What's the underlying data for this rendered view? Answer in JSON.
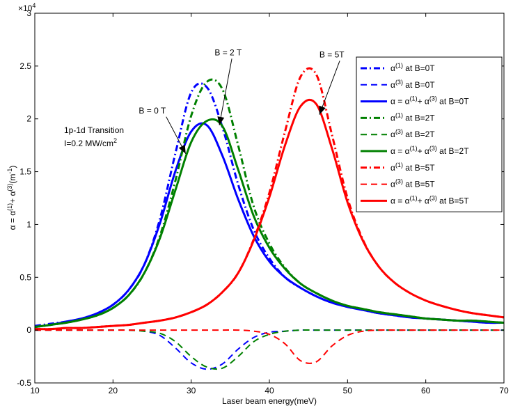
{
  "chart_data": {
    "type": "line",
    "title": "",
    "xlabel": "Laser beam energy(meV)",
    "ylabel_parts": [
      "α = α",
      "(1)",
      "+ α",
      "(3)",
      "(m",
      "-1",
      ")"
    ],
    "y_multiplier": {
      "base": "×10",
      "exp": "4"
    },
    "xlim": [
      10,
      70
    ],
    "ylim": [
      -0.5,
      3
    ],
    "x_ticks": [
      10,
      20,
      30,
      40,
      50,
      60,
      70
    ],
    "x_tick_labels": [
      "10",
      "20",
      "30",
      "40",
      "50",
      "60",
      "70"
    ],
    "y_ticks": [
      -0.5,
      0,
      0.5,
      1,
      1.5,
      2,
      2.5,
      3
    ],
    "y_tick_labels": [
      "-0.5",
      "0",
      "0.5",
      "1",
      "1.5",
      "2",
      "2.5",
      "3"
    ],
    "grid": false,
    "legend_position": "top-right",
    "x": [
      10,
      12,
      14,
      16,
      18,
      20,
      22,
      24,
      26,
      28,
      30,
      32,
      34,
      36,
      38,
      40,
      42,
      44,
      46,
      48,
      50,
      52,
      54,
      56,
      58,
      60,
      62,
      64,
      66,
      68,
      70
    ],
    "series": [
      {
        "legend": [
          "α",
          "(1)",
          " at B=0T"
        ],
        "color": "#0000ff",
        "style": "dashdot",
        "width": 3,
        "values": [
          0.04,
          0.06,
          0.08,
          0.11,
          0.16,
          0.24,
          0.38,
          0.62,
          1.05,
          1.68,
          2.25,
          2.3,
          1.92,
          1.38,
          0.95,
          0.68,
          0.5,
          0.4,
          0.32,
          0.26,
          0.22,
          0.19,
          0.16,
          0.14,
          0.12,
          0.11,
          0.1,
          0.09,
          0.08,
          0.07,
          0.07
        ]
      },
      {
        "legend": [
          "α",
          "(3)",
          " at B=0T"
        ],
        "color": "#0000ff",
        "style": "dash",
        "width": 2,
        "values": [
          0,
          0,
          0,
          0,
          0,
          0,
          0,
          -0.01,
          -0.05,
          -0.17,
          -0.31,
          -0.37,
          -0.32,
          -0.18,
          -0.07,
          -0.02,
          -0.01,
          0,
          0,
          0,
          0,
          0,
          0,
          0,
          0,
          0,
          0,
          0,
          0,
          0,
          0
        ]
      },
      {
        "legend": [
          "α = α",
          "(1)",
          "+ α",
          "(3)",
          " at B=0T"
        ],
        "color": "#0000ff",
        "style": "solid",
        "width": 3,
        "values": [
          0.03,
          0.05,
          0.08,
          0.11,
          0.16,
          0.24,
          0.38,
          0.62,
          1.01,
          1.51,
          1.88,
          1.94,
          1.65,
          1.24,
          0.89,
          0.65,
          0.5,
          0.4,
          0.32,
          0.26,
          0.22,
          0.19,
          0.16,
          0.14,
          0.12,
          0.11,
          0.1,
          0.09,
          0.08,
          0.07,
          0.07
        ]
      },
      {
        "legend": [
          "α",
          "(1)",
          " at B=2T"
        ],
        "color": "#008000",
        "style": "dashdot",
        "width": 3,
        "values": [
          0.03,
          0.05,
          0.07,
          0.1,
          0.14,
          0.21,
          0.33,
          0.54,
          0.89,
          1.42,
          2.03,
          2.35,
          2.28,
          1.75,
          1.17,
          0.82,
          0.59,
          0.44,
          0.35,
          0.28,
          0.23,
          0.2,
          0.17,
          0.15,
          0.13,
          0.11,
          0.1,
          0.09,
          0.09,
          0.08,
          0.07
        ]
      },
      {
        "legend": [
          "α",
          "(3)",
          " at B=2T"
        ],
        "color": "#008000",
        "style": "dash",
        "width": 2,
        "values": [
          0,
          0,
          0,
          0,
          0,
          0,
          0,
          -0.01,
          -0.03,
          -0.11,
          -0.25,
          -0.35,
          -0.36,
          -0.25,
          -0.11,
          -0.04,
          -0.01,
          0,
          0,
          0,
          0,
          0,
          0,
          0,
          0,
          0,
          0,
          0,
          0,
          0,
          0
        ]
      },
      {
        "legend": [
          "α = α",
          "(1)",
          "+ α",
          "(3)",
          " at B=2T"
        ],
        "color": "#008000",
        "style": "solid",
        "width": 3,
        "values": [
          0.03,
          0.05,
          0.07,
          0.1,
          0.14,
          0.21,
          0.33,
          0.54,
          0.87,
          1.33,
          1.78,
          1.98,
          1.93,
          1.52,
          1.08,
          0.78,
          0.58,
          0.44,
          0.35,
          0.28,
          0.23,
          0.2,
          0.17,
          0.15,
          0.13,
          0.11,
          0.1,
          0.09,
          0.09,
          0.08,
          0.07
        ]
      },
      {
        "legend": [
          "α",
          "(1)",
          " at B=5T"
        ],
        "color": "#ff0000",
        "style": "dashdot",
        "width": 3,
        "values": [
          0.01,
          0.01,
          0.02,
          0.02,
          0.03,
          0.04,
          0.05,
          0.07,
          0.09,
          0.12,
          0.17,
          0.24,
          0.36,
          0.54,
          0.86,
          1.3,
          1.88,
          2.4,
          2.42,
          1.85,
          1.25,
          0.85,
          0.6,
          0.45,
          0.35,
          0.28,
          0.23,
          0.19,
          0.16,
          0.14,
          0.12
        ]
      },
      {
        "legend": [
          "α",
          "(3)",
          " at B=5T"
        ],
        "color": "#ff0000",
        "style": "dash",
        "width": 2,
        "values": [
          0,
          0,
          0,
          0,
          0,
          0,
          0,
          0,
          0,
          0,
          0,
          0,
          0,
          0,
          -0.01,
          -0.04,
          -0.13,
          -0.29,
          -0.3,
          -0.15,
          -0.05,
          -0.01,
          0,
          0,
          0,
          0,
          0,
          0,
          0,
          0,
          0
        ]
      },
      {
        "legend": [
          "α = α",
          "(1)",
          "+ α",
          "(3)",
          " at B=5T"
        ],
        "color": "#ff0000",
        "style": "solid",
        "width": 3,
        "values": [
          0.01,
          0.01,
          0.02,
          0.02,
          0.03,
          0.04,
          0.05,
          0.07,
          0.09,
          0.12,
          0.17,
          0.24,
          0.36,
          0.54,
          0.85,
          1.26,
          1.75,
          2.12,
          2.14,
          1.72,
          1.21,
          0.84,
          0.6,
          0.45,
          0.35,
          0.28,
          0.23,
          0.19,
          0.16,
          0.14,
          0.12
        ]
      }
    ],
    "annotations": [
      {
        "name": "b0",
        "text": "B = 0 T",
        "color": "#0000ff",
        "tx": 23.3,
        "ty": 2.05,
        "ax1": 26.8,
        "ay1": 2.02,
        "ax2": 29.3,
        "ay2": 1.67
      },
      {
        "name": "b2",
        "text": "B = 2 T",
        "color": "#008000",
        "tx": 33.0,
        "ty": 2.6,
        "ax1": 35.2,
        "ay1": 2.57,
        "ax2": 33.6,
        "ay2": 1.94
      },
      {
        "name": "b5",
        "text": "B = 5T",
        "color": "#ff0000",
        "tx": 46.4,
        "ty": 2.58,
        "ax1": 49.0,
        "ay1": 2.55,
        "ax2": 46.4,
        "ay2": 2.04
      }
    ],
    "transition_label": "1p-1d Transition",
    "intensity_label": {
      "text": "I=0.2 MW/cm",
      "exp": "2"
    }
  }
}
